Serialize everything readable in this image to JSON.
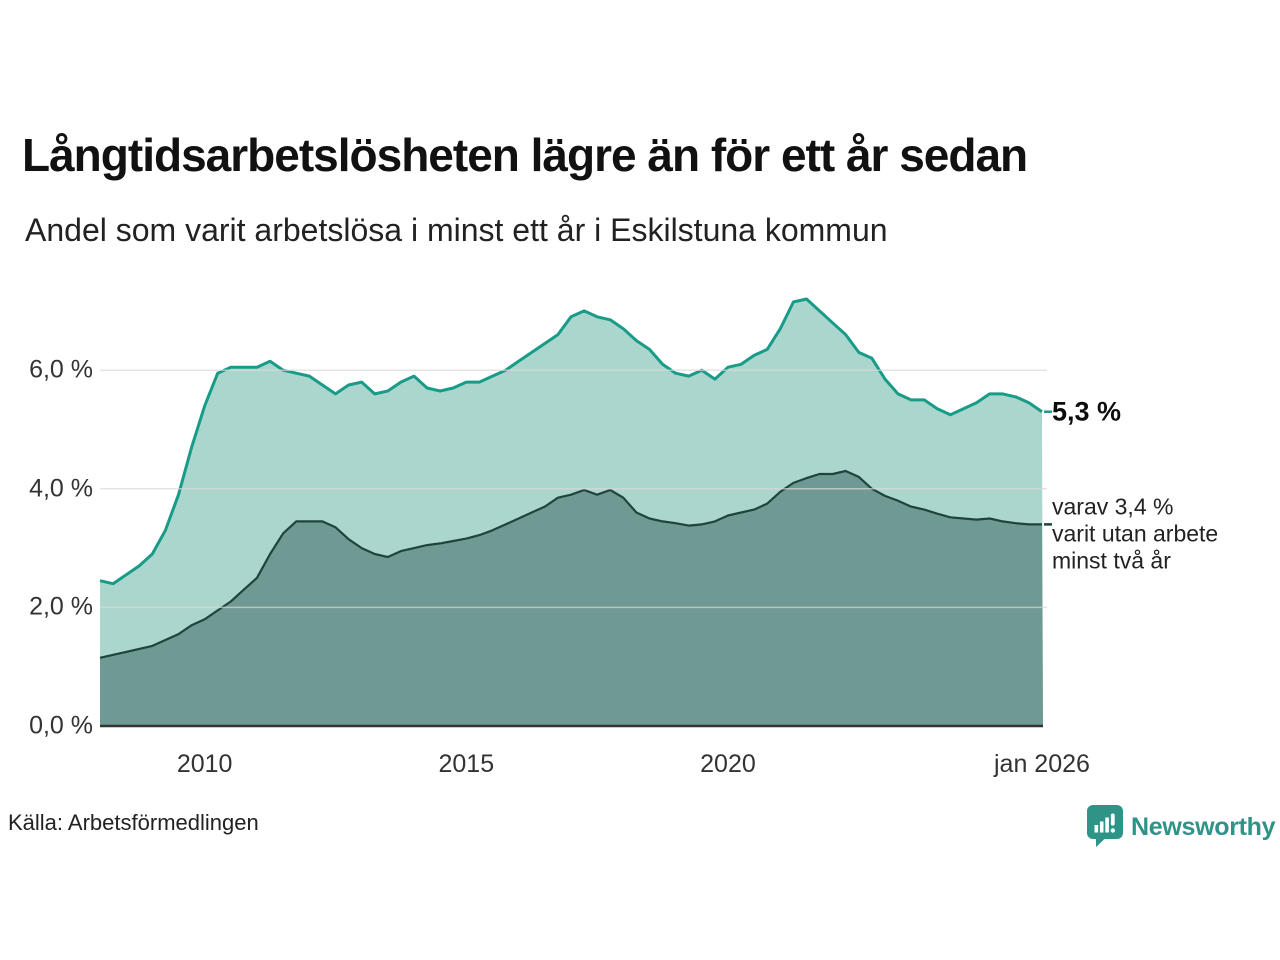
{
  "header": {
    "title": "Långtidsarbetslösheten lägre än för ett år sedan",
    "subtitle": "Andel som varit arbetslösa i minst ett år i Eskilstuna kommun"
  },
  "chart_data": {
    "type": "area",
    "title": "Långtidsarbetslösheten lägre än för ett år sedan",
    "subtitle": "Andel som varit arbetslösa i minst ett år i Eskilstuna kommun",
    "unit": "%",
    "grid": true,
    "legend_position": "none",
    "xlim": [
      2008,
      2026.02
    ],
    "ylim": [
      0,
      7.35
    ],
    "x": [
      2008,
      2008.25,
      2008.5,
      2008.75,
      2009,
      2009.25,
      2009.5,
      2009.75,
      2010,
      2010.25,
      2010.5,
      2010.75,
      2011,
      2011.25,
      2011.5,
      2011.75,
      2012,
      2012.25,
      2012.5,
      2012.75,
      2013,
      2013.25,
      2013.5,
      2013.75,
      2014,
      2014.25,
      2014.5,
      2014.75,
      2015,
      2015.25,
      2015.5,
      2015.75,
      2016,
      2016.25,
      2016.5,
      2016.75,
      2017,
      2017.25,
      2017.5,
      2017.75,
      2018,
      2018.25,
      2018.5,
      2018.75,
      2019,
      2019.25,
      2019.5,
      2019.75,
      2020,
      2020.25,
      2020.5,
      2020.75,
      2021,
      2021.25,
      2021.5,
      2021.75,
      2022,
      2022.25,
      2022.5,
      2022.75,
      2023,
      2023.25,
      2023.5,
      2023.75,
      2024,
      2024.25,
      2024.5,
      2024.75,
      2025,
      2025.25,
      2025.5,
      2025.75,
      2026
    ],
    "series": [
      {
        "name": "Arbetslösa minst ett år",
        "line_color": "#189b87",
        "fill_color": "#abd6ce",
        "end_label": "5,3 %",
        "values": [
          2.45,
          2.4,
          2.55,
          2.7,
          2.9,
          3.3,
          3.9,
          4.7,
          5.4,
          5.95,
          6.05,
          6.05,
          6.05,
          6.15,
          6.0,
          5.95,
          5.9,
          5.75,
          5.6,
          5.75,
          5.8,
          5.6,
          5.65,
          5.8,
          5.9,
          5.7,
          5.65,
          5.7,
          5.8,
          5.8,
          5.9,
          6.0,
          6.15,
          6.3,
          6.45,
          6.6,
          6.9,
          7.0,
          6.9,
          6.85,
          6.7,
          6.5,
          6.35,
          6.1,
          5.95,
          5.9,
          6.0,
          5.85,
          6.05,
          6.1,
          6.25,
          6.35,
          6.7,
          7.15,
          7.2,
          7.0,
          6.8,
          6.6,
          6.3,
          6.2,
          5.85,
          5.6,
          5.5,
          5.5,
          5.35,
          5.25,
          5.35,
          5.45,
          5.6,
          5.6,
          5.55,
          5.45,
          5.3
        ]
      },
      {
        "name": "Arbetslösa minst två år",
        "line_color": "#1f443e",
        "fill_color": "#6f9a94",
        "end_label": "varav 3,4 % varit utan arbete minst två år",
        "values": [
          1.15,
          1.2,
          1.25,
          1.3,
          1.35,
          1.45,
          1.55,
          1.7,
          1.8,
          1.95,
          2.1,
          2.3,
          2.5,
          2.9,
          3.25,
          3.45,
          3.45,
          3.45,
          3.35,
          3.15,
          3.0,
          2.9,
          2.85,
          2.95,
          3.0,
          3.05,
          3.08,
          3.12,
          3.16,
          3.22,
          3.3,
          3.4,
          3.5,
          3.6,
          3.7,
          3.85,
          3.9,
          3.98,
          3.9,
          3.98,
          3.85,
          3.6,
          3.5,
          3.45,
          3.42,
          3.38,
          3.4,
          3.45,
          3.55,
          3.6,
          3.65,
          3.75,
          3.95,
          4.1,
          4.18,
          4.25,
          4.25,
          4.3,
          4.2,
          4.0,
          3.88,
          3.8,
          3.7,
          3.65,
          3.58,
          3.52,
          3.5,
          3.48,
          3.5,
          3.45,
          3.42,
          3.4,
          3.4
        ]
      }
    ],
    "yticks": [
      {
        "value": 6,
        "label": "6,0 %"
      },
      {
        "value": 4,
        "label": "4,0 %"
      },
      {
        "value": 2,
        "label": "2,0 %"
      },
      {
        "value": 0,
        "label": "0,0 %"
      }
    ],
    "xticks": [
      {
        "value": 2010,
        "label": "2010"
      },
      {
        "value": 2015,
        "label": "2015"
      },
      {
        "value": 2020,
        "label": "2020"
      },
      {
        "value": 2026,
        "label": "jan 2026"
      }
    ]
  },
  "annotations": {
    "total_label": "5,3 %",
    "two_year_lines": [
      "varav 3,4 %",
      "varit utan arbete",
      "minst två år"
    ]
  },
  "footer": {
    "source": "Källa: Arbetsförmedlingen",
    "brand": "Newsworthy"
  },
  "colors": {
    "accent_teal": "#189b87",
    "light_fill": "#abd6ce",
    "dark_fill": "#6f9a94",
    "dark_line": "#1f443e",
    "gridline": "#d9d9d9",
    "axis": "#333333",
    "brand_teal": "#2f9488"
  }
}
